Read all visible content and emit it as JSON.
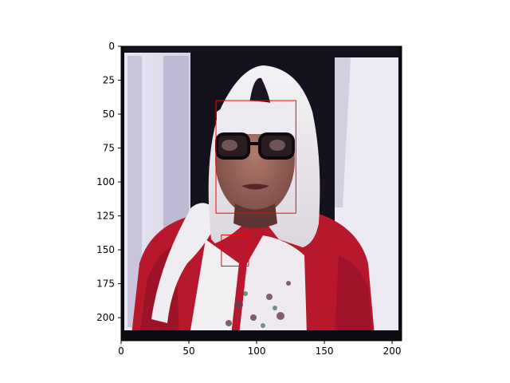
{
  "figure": {
    "x_ticks": [
      "0",
      "50",
      "100",
      "150",
      "200"
    ],
    "y_ticks": [
      "0",
      "25",
      "50",
      "75",
      "100",
      "125",
      "150",
      "175",
      "200"
    ],
    "x_range": [
      0,
      207
    ],
    "y_range": [
      217,
      0
    ],
    "image": {
      "width": 207,
      "height": 217,
      "subject": "woman-with-white-headscarf-glasses-red-top"
    },
    "annotation_color": "#ff0000",
    "annotations": [
      {
        "name": "face-box",
        "x0": 70,
        "y0": 40,
        "x1": 129,
        "y1": 123
      },
      {
        "name": "neck-box",
        "x0": 74,
        "y0": 139,
        "x1": 94,
        "y1": 162
      }
    ]
  }
}
